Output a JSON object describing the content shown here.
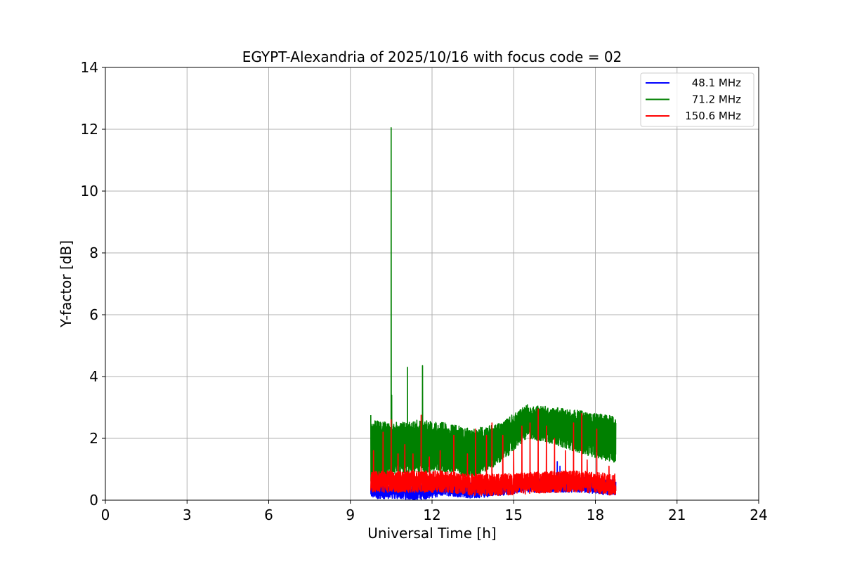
{
  "chart_data": {
    "type": "line",
    "title": "EGYPT-Alexandria of 2025/10/16 with focus code = 02",
    "xlabel": "Universal Time [h]",
    "ylabel": "Y-factor [dB]",
    "xlim": [
      0,
      24
    ],
    "ylim": [
      0,
      14
    ],
    "xticks": [
      0,
      3,
      6,
      9,
      12,
      15,
      18,
      21,
      24
    ],
    "yticks": [
      0,
      2,
      4,
      6,
      8,
      10,
      12,
      14
    ],
    "grid": true,
    "legend_position": "top-right",
    "time_range": [
      9.75,
      18.75
    ],
    "series": [
      {
        "name": "48.1 MHz",
        "color": "#0000ff",
        "baseline": [
          [
            9.75,
            0.3
          ],
          [
            10.5,
            0.3
          ],
          [
            11.5,
            0.25
          ],
          [
            12.5,
            0.4
          ],
          [
            13.5,
            0.3
          ],
          [
            14.5,
            0.4
          ],
          [
            15.5,
            0.5
          ],
          [
            16.5,
            0.5
          ],
          [
            17.5,
            0.5
          ],
          [
            18.75,
            0.4
          ]
        ],
        "noise_amplitude": 0.25,
        "spikes": [
          [
            16.6,
            1.25
          ],
          [
            16.7,
            1.1
          ]
        ]
      },
      {
        "name": "71.2 MHz",
        "color": "#008000",
        "band": [
          [
            9.75,
            0.6,
            2.6
          ],
          [
            10.5,
            0.8,
            2.5
          ],
          [
            11.5,
            0.9,
            2.6
          ],
          [
            12.5,
            0.9,
            2.5
          ],
          [
            13.5,
            0.7,
            2.3
          ],
          [
            14.5,
            1.2,
            2.5
          ],
          [
            15.0,
            1.6,
            2.8
          ],
          [
            15.5,
            2.0,
            3.1
          ],
          [
            16.5,
            1.8,
            3.0
          ],
          [
            17.5,
            1.5,
            2.9
          ],
          [
            18.75,
            1.2,
            2.7
          ]
        ],
        "spikes": [
          [
            9.75,
            2.75
          ],
          [
            10.5,
            12.05
          ],
          [
            10.52,
            3.4
          ],
          [
            11.1,
            4.3
          ],
          [
            11.65,
            4.35
          ]
        ]
      },
      {
        "name": "150.6 MHz",
        "color": "#ff0000",
        "baseline": [
          [
            9.75,
            0.6
          ],
          [
            10.5,
            0.6
          ],
          [
            11.5,
            0.6
          ],
          [
            12.5,
            0.6
          ],
          [
            13.5,
            0.5
          ],
          [
            14.5,
            0.5
          ],
          [
            15.5,
            0.55
          ],
          [
            16.5,
            0.6
          ],
          [
            17.5,
            0.6
          ],
          [
            18.75,
            0.5
          ]
        ],
        "noise_amplitude": 0.35,
        "spikes": [
          [
            9.85,
            1.6
          ],
          [
            10.2,
            2.2
          ],
          [
            10.5,
            2.6
          ],
          [
            10.75,
            1.5
          ],
          [
            11.0,
            1.8
          ],
          [
            11.3,
            1.5
          ],
          [
            11.6,
            2.75
          ],
          [
            11.9,
            1.4
          ],
          [
            12.3,
            1.6
          ],
          [
            12.8,
            2.1
          ],
          [
            13.3,
            1.5
          ],
          [
            13.6,
            2.3
          ],
          [
            14.0,
            2.1
          ],
          [
            14.2,
            2.5
          ],
          [
            14.6,
            2.1
          ],
          [
            15.0,
            1.6
          ],
          [
            15.3,
            2.4
          ],
          [
            15.6,
            2.5
          ],
          [
            15.9,
            2.95
          ],
          [
            16.2,
            2.4
          ],
          [
            16.5,
            2.0
          ],
          [
            16.9,
            1.6
          ],
          [
            17.2,
            2.5
          ],
          [
            17.5,
            2.8
          ],
          [
            17.7,
            1.3
          ],
          [
            18.05,
            2.3
          ],
          [
            18.5,
            1.1
          ]
        ]
      }
    ]
  }
}
